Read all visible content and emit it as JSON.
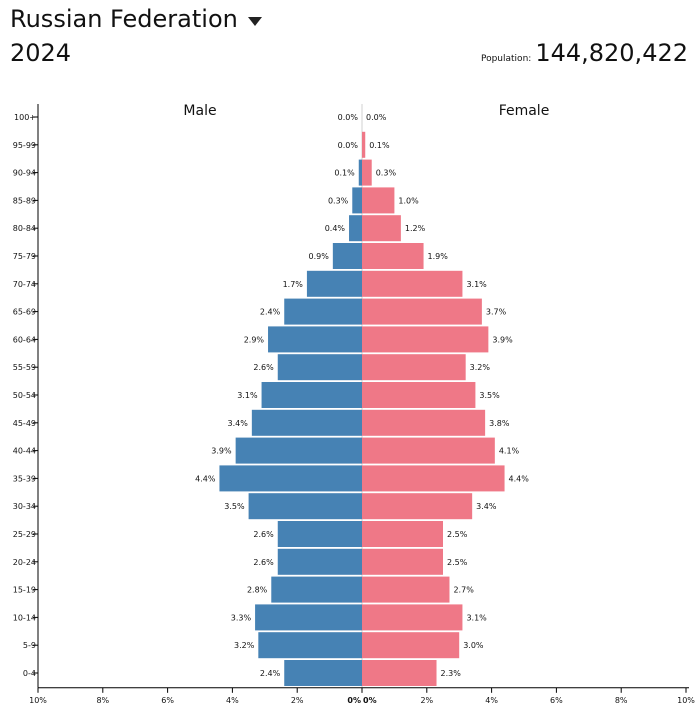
{
  "header": {
    "country": "Russian Federation",
    "year": "2024",
    "population_label": "Population:",
    "population_value": "144,820,422"
  },
  "chart_data": {
    "type": "bar",
    "orientation": "horizontal-butterfly",
    "categories": [
      "100+",
      "95-99",
      "90-94",
      "85-89",
      "80-84",
      "75-79",
      "70-74",
      "65-69",
      "60-64",
      "55-59",
      "50-54",
      "45-49",
      "40-44",
      "35-39",
      "30-34",
      "25-29",
      "20-24",
      "15-19",
      "10-14",
      "5-9",
      "0-4"
    ],
    "series": [
      {
        "name": "Male",
        "color": "#4682b4",
        "values": [
          0.0,
          0.0,
          0.1,
          0.3,
          0.4,
          0.9,
          1.7,
          2.4,
          2.9,
          2.6,
          3.1,
          3.4,
          3.9,
          4.4,
          3.5,
          2.6,
          2.6,
          2.8,
          3.3,
          3.2,
          2.4
        ],
        "labels": [
          "0.0%",
          "0.0%",
          "0.1%",
          "0.3%",
          "0.4%",
          "0.9%",
          "1.7%",
          "2.4%",
          "2.9%",
          "2.6%",
          "3.1%",
          "3.4%",
          "3.9%",
          "4.4%",
          "3.5%",
          "2.6%",
          "2.6%",
          "2.8%",
          "3.3%",
          "3.2%",
          "2.4%"
        ]
      },
      {
        "name": "Female",
        "color": "#ef7887",
        "values": [
          0.0,
          0.1,
          0.3,
          1.0,
          1.2,
          1.9,
          3.1,
          3.7,
          3.9,
          3.2,
          3.5,
          3.8,
          4.1,
          4.4,
          3.4,
          2.5,
          2.5,
          2.7,
          3.1,
          3.0,
          2.3
        ],
        "labels": [
          "0.0%",
          "0.1%",
          "0.3%",
          "1.0%",
          "1.2%",
          "1.9%",
          "3.1%",
          "3.7%",
          "3.9%",
          "3.2%",
          "3.5%",
          "3.8%",
          "4.1%",
          "4.4%",
          "3.4%",
          "2.5%",
          "2.5%",
          "2.7%",
          "3.1%",
          "3.0%",
          "2.3%"
        ]
      }
    ],
    "xlim": [
      -10,
      10
    ],
    "x_ticks": [
      "10%",
      "8%",
      "6%",
      "4%",
      "2%",
      "0%",
      "0%",
      "2%",
      "4%",
      "6%",
      "8%",
      "10%"
    ],
    "grid": false
  }
}
